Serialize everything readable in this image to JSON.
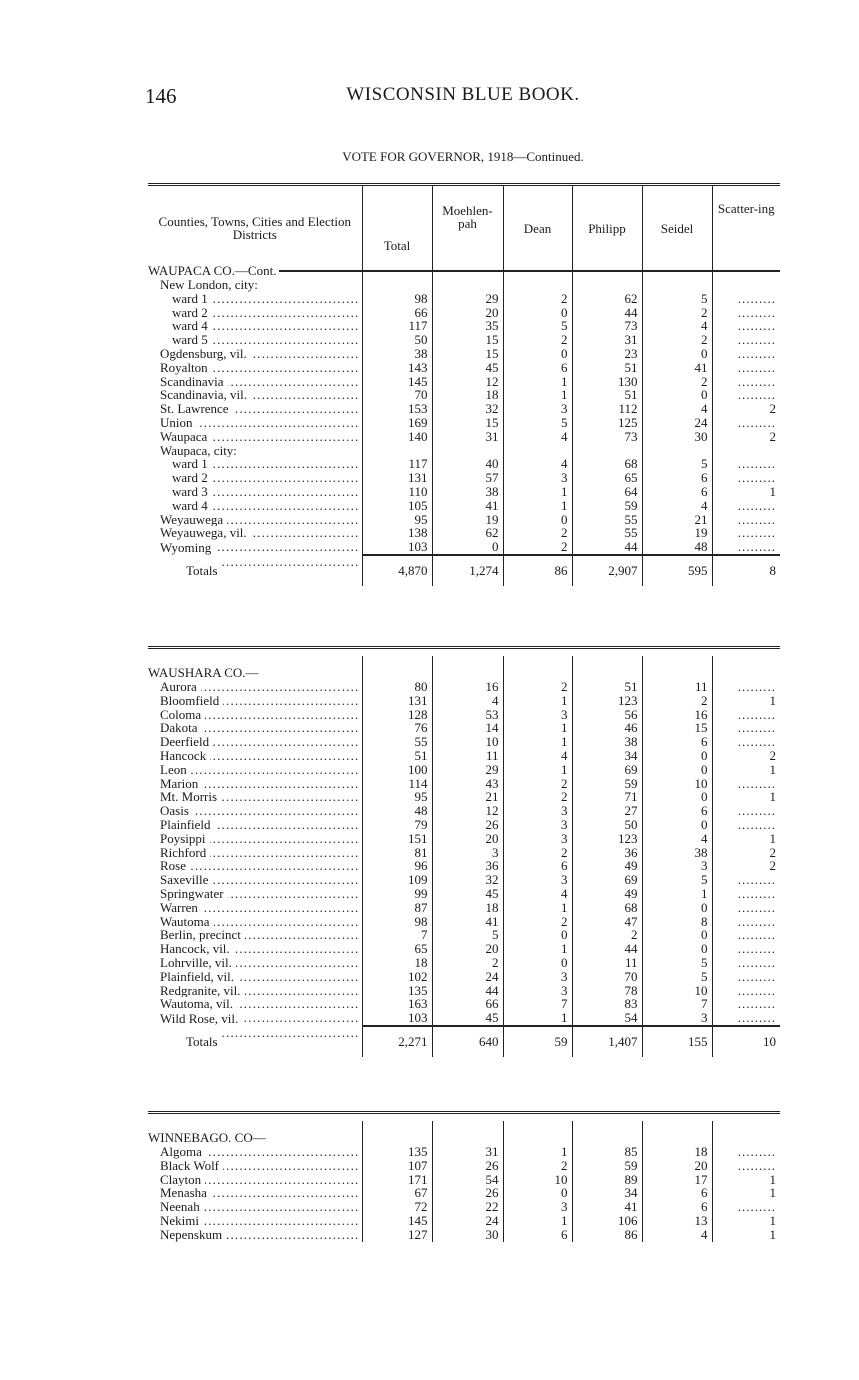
{
  "page_number": "146",
  "book_title": "WISCONSIN BLUE BOOK.",
  "subtitle": "VOTE FOR GOVERNOR, 1918—Continued.",
  "columns": [
    "Counties, Towns, Cities and Election Districts",
    "Total",
    "Moehlen-pah",
    "Dean",
    "Philipp",
    "Seidel",
    "Scatter-ing"
  ],
  "sections": [
    {
      "heading": "WAUPACA CO.—Cont.",
      "rows": [
        {
          "label": "New London, city:",
          "indent": 1,
          "values": null
        },
        {
          "label": "ward 1",
          "indent": 2,
          "values": [
            "98",
            "29",
            "2",
            "62",
            "5",
            ""
          ]
        },
        {
          "label": "ward 2",
          "indent": 2,
          "values": [
            "66",
            "20",
            "0",
            "44",
            "2",
            ""
          ]
        },
        {
          "label": "ward 4",
          "indent": 2,
          "values": [
            "117",
            "35",
            "5",
            "73",
            "4",
            ""
          ]
        },
        {
          "label": "ward 5",
          "indent": 2,
          "values": [
            "50",
            "15",
            "2",
            "31",
            "2",
            ""
          ]
        },
        {
          "label": "Ogdensburg, vil.",
          "indent": 1,
          "values": [
            "38",
            "15",
            "0",
            "23",
            "0",
            ""
          ]
        },
        {
          "label": "Royalton",
          "indent": 1,
          "values": [
            "143",
            "45",
            "6",
            "51",
            "41",
            ""
          ]
        },
        {
          "label": "Scandinavia",
          "indent": 1,
          "values": [
            "145",
            "12",
            "1",
            "130",
            "2",
            ""
          ]
        },
        {
          "label": "Scandinavia, vil.",
          "indent": 1,
          "values": [
            "70",
            "18",
            "1",
            "51",
            "0",
            ""
          ]
        },
        {
          "label": "St. Lawrence",
          "indent": 1,
          "values": [
            "153",
            "32",
            "3",
            "112",
            "4",
            "2"
          ]
        },
        {
          "label": "Union",
          "indent": 1,
          "values": [
            "169",
            "15",
            "5",
            "125",
            "24",
            ""
          ]
        },
        {
          "label": "Waupaca",
          "indent": 1,
          "values": [
            "140",
            "31",
            "4",
            "73",
            "30",
            "2"
          ]
        },
        {
          "label": "Waupaca, city:",
          "indent": 1,
          "values": null
        },
        {
          "label": "ward 1",
          "indent": 2,
          "values": [
            "117",
            "40",
            "4",
            "68",
            "5",
            ""
          ]
        },
        {
          "label": "ward 2",
          "indent": 2,
          "values": [
            "131",
            "57",
            "3",
            "65",
            "6",
            ""
          ]
        },
        {
          "label": "ward 3",
          "indent": 2,
          "values": [
            "110",
            "38",
            "1",
            "64",
            "6",
            "1"
          ]
        },
        {
          "label": "ward 4",
          "indent": 2,
          "values": [
            "105",
            "41",
            "1",
            "59",
            "4",
            ""
          ]
        },
        {
          "label": "Weyauwega",
          "indent": 1,
          "values": [
            "95",
            "19",
            "0",
            "55",
            "21",
            ""
          ]
        },
        {
          "label": "Weyauwega, vil.",
          "indent": 1,
          "values": [
            "138",
            "62",
            "2",
            "55",
            "19",
            ""
          ]
        },
        {
          "label": "Wyoming",
          "indent": 1,
          "values": [
            "103",
            "0",
            "2",
            "44",
            "48",
            ""
          ]
        }
      ],
      "totals": {
        "label": "Totals",
        "values": [
          "4,870",
          "1,274",
          "86",
          "2,907",
          "595",
          "8"
        ]
      }
    },
    {
      "heading": "WAUSHARA CO.—",
      "rows": [
        {
          "label": "Aurora",
          "indent": 1,
          "values": [
            "80",
            "16",
            "2",
            "51",
            "11",
            ""
          ]
        },
        {
          "label": "Bloomfield",
          "indent": 1,
          "values": [
            "131",
            "4",
            "1",
            "123",
            "2",
            "1"
          ]
        },
        {
          "label": "Coloma",
          "indent": 1,
          "values": [
            "128",
            "53",
            "3",
            "56",
            "16",
            ""
          ]
        },
        {
          "label": "Dakota",
          "indent": 1,
          "values": [
            "76",
            "14",
            "1",
            "46",
            "15",
            ""
          ]
        },
        {
          "label": "Deerfield",
          "indent": 1,
          "values": [
            "55",
            "10",
            "1",
            "38",
            "6",
            ""
          ]
        },
        {
          "label": "Hancock",
          "indent": 1,
          "values": [
            "51",
            "11",
            "4",
            "34",
            "0",
            "2"
          ]
        },
        {
          "label": "Leon",
          "indent": 1,
          "values": [
            "100",
            "29",
            "1",
            "69",
            "0",
            "1"
          ]
        },
        {
          "label": "Marion",
          "indent": 1,
          "values": [
            "114",
            "43",
            "2",
            "59",
            "10",
            ""
          ]
        },
        {
          "label": "Mt. Morris",
          "indent": 1,
          "values": [
            "95",
            "21",
            "2",
            "71",
            "0",
            "1"
          ]
        },
        {
          "label": "Oasis",
          "indent": 1,
          "values": [
            "48",
            "12",
            "3",
            "27",
            "6",
            ""
          ]
        },
        {
          "label": "Plainfield",
          "indent": 1,
          "values": [
            "79",
            "26",
            "3",
            "50",
            "0",
            ""
          ]
        },
        {
          "label": "Poysippi",
          "indent": 1,
          "values": [
            "151",
            "20",
            "3",
            "123",
            "4",
            "1"
          ]
        },
        {
          "label": "Richford",
          "indent": 1,
          "values": [
            "81",
            "3",
            "2",
            "36",
            "38",
            "2"
          ]
        },
        {
          "label": "Rose",
          "indent": 1,
          "values": [
            "96",
            "36",
            "6",
            "49",
            "3",
            "2"
          ]
        },
        {
          "label": "Saxeville",
          "indent": 1,
          "values": [
            "109",
            "32",
            "3",
            "69",
            "5",
            ""
          ]
        },
        {
          "label": "Springwater",
          "indent": 1,
          "values": [
            "99",
            "45",
            "4",
            "49",
            "1",
            ""
          ]
        },
        {
          "label": "Warren",
          "indent": 1,
          "values": [
            "87",
            "18",
            "1",
            "68",
            "0",
            ""
          ]
        },
        {
          "label": "Wautoma",
          "indent": 1,
          "values": [
            "98",
            "41",
            "2",
            "47",
            "8",
            ""
          ]
        },
        {
          "label": "Berlin, precinct",
          "indent": 1,
          "values": [
            "7",
            "5",
            "0",
            "2",
            "0",
            ""
          ]
        },
        {
          "label": "Hancock, vil.",
          "indent": 1,
          "values": [
            "65",
            "20",
            "1",
            "44",
            "0",
            ""
          ]
        },
        {
          "label": "Lohrville, vil.",
          "indent": 1,
          "values": [
            "18",
            "2",
            "0",
            "11",
            "5",
            ""
          ]
        },
        {
          "label": "Plainfield, vil.",
          "indent": 1,
          "values": [
            "102",
            "24",
            "3",
            "70",
            "5",
            ""
          ]
        },
        {
          "label": "Redgranite, vil.",
          "indent": 1,
          "values": [
            "135",
            "44",
            "3",
            "78",
            "10",
            ""
          ]
        },
        {
          "label": "Wautoma, vil.",
          "indent": 1,
          "values": [
            "163",
            "66",
            "7",
            "83",
            "7",
            ""
          ]
        },
        {
          "label": "Wild Rose, vil.",
          "indent": 1,
          "values": [
            "103",
            "45",
            "1",
            "54",
            "3",
            ""
          ]
        }
      ],
      "totals": {
        "label": "Totals",
        "values": [
          "2,271",
          "640",
          "59",
          "1,407",
          "155",
          "10"
        ]
      }
    },
    {
      "heading": "WINNEBAGO. CO—",
      "rows": [
        {
          "label": "Algoma",
          "indent": 1,
          "values": [
            "135",
            "31",
            "1",
            "85",
            "18",
            ""
          ]
        },
        {
          "label": "Black Wolf",
          "indent": 1,
          "values": [
            "107",
            "26",
            "2",
            "59",
            "20",
            ""
          ]
        },
        {
          "label": "Clayton",
          "indent": 1,
          "values": [
            "171",
            "54",
            "10",
            "89",
            "17",
            "1"
          ]
        },
        {
          "label": "Menasha",
          "indent": 1,
          "values": [
            "67",
            "26",
            "0",
            "34",
            "6",
            "1"
          ]
        },
        {
          "label": "Neenah",
          "indent": 1,
          "values": [
            "72",
            "22",
            "3",
            "41",
            "6",
            ""
          ]
        },
        {
          "label": "Nekimi",
          "indent": 1,
          "values": [
            "145",
            "24",
            "1",
            "106",
            "13",
            "1"
          ]
        },
        {
          "label": "Nepenskum",
          "indent": 1,
          "values": [
            "127",
            "30",
            "6",
            "86",
            "4",
            "1"
          ]
        }
      ],
      "totals": null
    }
  ]
}
